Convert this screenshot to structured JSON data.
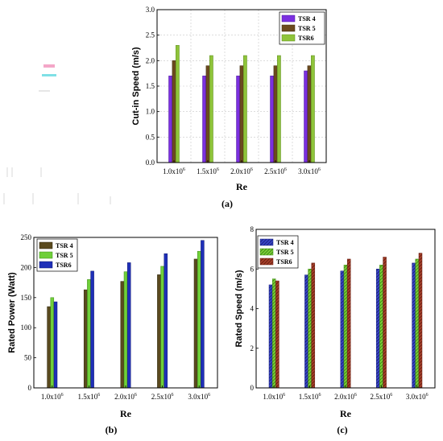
{
  "chart_data": [
    {
      "type": "bar",
      "panel_label": "(a)",
      "xlabel": "Re",
      "ylabel": "Cut-in Speed (m/s)",
      "categories": [
        "1.0x10^6",
        "1.5x10^6",
        "2.0x10^6",
        "2.5x10^6",
        "3.0x10^6"
      ],
      "ylim": [
        0,
        3.0
      ],
      "yticks": [
        "0.0",
        "0.5",
        "1.0",
        "1.5",
        "2.0",
        "2.5",
        "3.0"
      ],
      "grid": true,
      "legend_position": "top-right",
      "series": [
        {
          "name": "TSR 4",
          "values": [
            1.7,
            1.7,
            1.7,
            1.7,
            1.8
          ],
          "color": "#7b2fe0",
          "edge": "#4b1a9a"
        },
        {
          "name": "TSR 5",
          "values": [
            2.0,
            1.9,
            1.9,
            1.9,
            1.9
          ],
          "color": "#6b4a1e",
          "edge": "#3f2a0e"
        },
        {
          "name": "TSR6",
          "values": [
            2.3,
            2.1,
            2.1,
            2.1,
            2.1
          ],
          "color": "#8fc43a",
          "edge": "#5b8a1c"
        }
      ]
    },
    {
      "type": "bar",
      "panel_label": "(b)",
      "xlabel": "Re",
      "ylabel": "Rated Power (Watt)",
      "categories": [
        "1.0x10^6",
        "1.5x10^6",
        "2.0x10^6",
        "2.5x10^6",
        "3.0x10^6"
      ],
      "ylim": [
        0,
        250
      ],
      "yticks": [
        "0",
        "50",
        "100",
        "150",
        "200",
        "250"
      ],
      "grid": false,
      "legend_position": "top-left",
      "series": [
        {
          "name": "TSR 4",
          "values": [
            135,
            163,
            177,
            188,
            214
          ],
          "color": "#5a4a1e",
          "edge": "#2e250d"
        },
        {
          "name": "TSR 5",
          "values": [
            150,
            180,
            193,
            202,
            227
          ],
          "color": "#6fcf3a",
          "edge": "#3e8a16"
        },
        {
          "name": "TSR6",
          "values": [
            143,
            194,
            208,
            223,
            245
          ],
          "color": "#1f2fb8",
          "edge": "#0f1870"
        }
      ]
    },
    {
      "type": "bar",
      "panel_label": "(c)",
      "xlabel": "Re",
      "ylabel": "Rated Speed (m/s)",
      "categories": [
        "1.0x10^6",
        "1.5x10^6",
        "2.0x10^6",
        "2.5x10^6",
        "3.0x10^6"
      ],
      "ylim": [
        0,
        8
      ],
      "yticks": [
        "0",
        "2",
        "4",
        "6",
        "8"
      ],
      "grid": false,
      "legend_position": "top-left",
      "series": [
        {
          "name": "TSR 4",
          "values": [
            5.2,
            5.7,
            5.9,
            6.0,
            6.3
          ],
          "color": "#3a46c8",
          "edge": "#1a2280"
        },
        {
          "name": "TSR 5",
          "values": [
            5.5,
            6.0,
            6.2,
            6.2,
            6.5
          ],
          "color": "#7ed03a",
          "edge": "#3e8a16"
        },
        {
          "name": "TSR6",
          "values": [
            5.4,
            6.3,
            6.5,
            6.6,
            6.8
          ],
          "color": "#a8402a",
          "edge": "#6a1e10"
        }
      ]
    }
  ]
}
